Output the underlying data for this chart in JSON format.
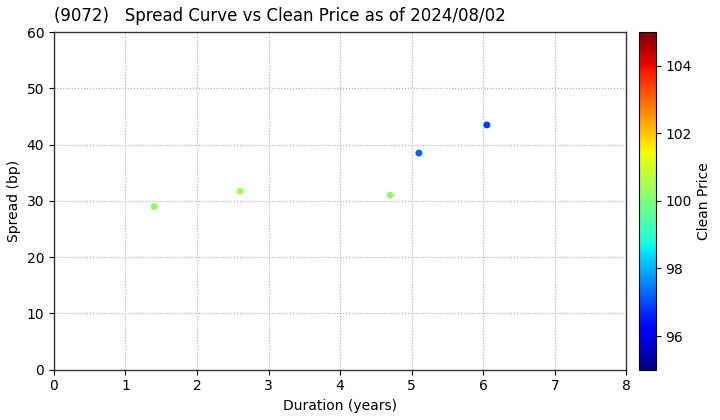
{
  "title": "(9072)   Spread Curve vs Clean Price as of 2024/08/02",
  "xlabel": "Duration (years)",
  "ylabel": "Spread (bp)",
  "colorbar_label": "Clean Price",
  "xlim": [
    0,
    8
  ],
  "ylim": [
    0,
    60
  ],
  "xticks": [
    0,
    1,
    2,
    3,
    4,
    5,
    6,
    7,
    8
  ],
  "yticks": [
    0,
    10,
    20,
    30,
    40,
    50,
    60
  ],
  "colorbar_min": 95,
  "colorbar_max": 105,
  "colorbar_ticks": [
    96,
    98,
    100,
    102,
    104
  ],
  "points": [
    {
      "duration": 1.4,
      "spread": 29,
      "price": 100.3
    },
    {
      "duration": 2.6,
      "spread": 31.7,
      "price": 100.5
    },
    {
      "duration": 4.7,
      "spread": 31,
      "price": 100.2
    },
    {
      "duration": 5.1,
      "spread": 38.5,
      "price": 97.2
    },
    {
      "duration": 6.05,
      "spread": 43.5,
      "price": 96.8
    }
  ],
  "marker_size": 25,
  "marker": "o",
  "grid_color": "#aaaaaa",
  "grid_linestyle": "dotted",
  "background_color": "#ffffff",
  "title_fontsize": 12,
  "axis_fontsize": 10,
  "title_fontweight": "normal"
}
